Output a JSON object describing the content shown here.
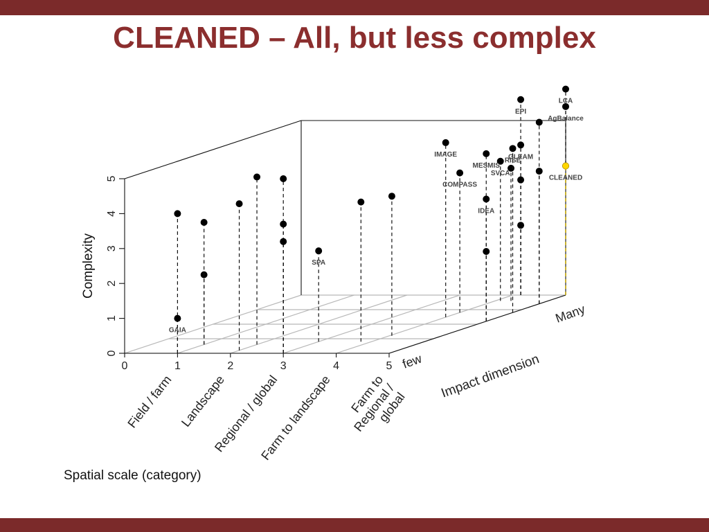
{
  "slide": {
    "title": "CLEANED – All, but less complex",
    "colors": {
      "accent": "#7b2a2a",
      "title": "#8b2e2e",
      "highlight": "#ffd700"
    }
  },
  "chart_data": {
    "type": "scatter",
    "subtype": "3d-scatter-with-droplines",
    "axes": {
      "x": {
        "label": "Spatial scale (category)",
        "ticks": [
          "0",
          "1",
          "2",
          "3",
          "4",
          "5"
        ],
        "range": [
          0,
          5
        ],
        "categories": [
          "Field / farm",
          "Landscape",
          "Regional / global",
          "Farm to landscape",
          "Farm to Regional / global"
        ]
      },
      "z": {
        "label": "Complexity",
        "ticks": [
          "0",
          "1",
          "2",
          "3",
          "4",
          "5"
        ],
        "range": [
          0,
          5
        ]
      },
      "y": {
        "label": "Impact dimension",
        "end_labels": [
          "few",
          "Many"
        ],
        "range": [
          0,
          1
        ]
      }
    },
    "grid": true,
    "points": [
      {
        "x": 1,
        "y": 0.0,
        "z": 4.0,
        "label": ""
      },
      {
        "x": 1,
        "y": 0.0,
        "z": 1.0,
        "label": "GAIA"
      },
      {
        "x": 1,
        "y": 0.15,
        "z": 2.0,
        "label": ""
      },
      {
        "x": 1,
        "y": 0.15,
        "z": 3.5,
        "label": ""
      },
      {
        "x": 2,
        "y": 0.05,
        "z": 4.2,
        "label": ""
      },
      {
        "x": 2,
        "y": 0.15,
        "z": 4.8,
        "label": ""
      },
      {
        "x": 3,
        "y": 0.0,
        "z": 5.0,
        "label": ""
      },
      {
        "x": 3,
        "y": 0.0,
        "z": 3.7,
        "label": ""
      },
      {
        "x": 3,
        "y": 0.0,
        "z": 3.2,
        "label": ""
      },
      {
        "x": 3,
        "y": 0.2,
        "z": 2.6,
        "label": "SPA"
      },
      {
        "x": 3.8,
        "y": 0.2,
        "z": 4.0,
        "label": ""
      },
      {
        "x": 4.05,
        "y": 0.3,
        "z": 4.0,
        "label": ""
      },
      {
        "x": 4,
        "y": 0.62,
        "z": 5.0,
        "label": "IMAGE"
      },
      {
        "x": 4,
        "y": 0.7,
        "z": 4.0,
        "label": "COMPASS"
      },
      {
        "x": 4.15,
        "y": 1.0,
        "z": 5.6,
        "label": "EPI"
      },
      {
        "x": 4.15,
        "y": 1.0,
        "z": 4.3,
        "label": "GLEAM"
      },
      {
        "x": 4.15,
        "y": 1.0,
        "z": 3.3,
        "label": ""
      },
      {
        "x": 4.15,
        "y": 1.0,
        "z": 2.0,
        "label": ""
      },
      {
        "x": 4.1,
        "y": 0.9,
        "z": 4.0,
        "label": "SVCA"
      },
      {
        "x": 4.3,
        "y": 0.9,
        "z": 3.8,
        "label": ""
      },
      {
        "x": 5,
        "y": 0.55,
        "z": 4.8,
        "label": "MESMIS"
      },
      {
        "x": 5,
        "y": 0.55,
        "z": 3.5,
        "label": "IDEA"
      },
      {
        "x": 5,
        "y": 0.55,
        "z": 2.0,
        "label": ""
      },
      {
        "x": 5,
        "y": 0.7,
        "z": 4.7,
        "label": "RISE"
      },
      {
        "x": 5,
        "y": 0.85,
        "z": 5.2,
        "label": ""
      },
      {
        "x": 5,
        "y": 0.85,
        "z": 3.8,
        "label": ""
      },
      {
        "x": 5,
        "y": 1.0,
        "z": 3.7,
        "label": ""
      },
      {
        "x": 5,
        "y": 1.0,
        "z": 5.9,
        "label": "LCA"
      },
      {
        "x": 5,
        "y": 1.0,
        "z": 5.4,
        "label": "AgBalance"
      },
      {
        "x": 5,
        "y": 1.0,
        "z": 3.7,
        "label": "CLEANED",
        "highlight": true
      }
    ]
  }
}
